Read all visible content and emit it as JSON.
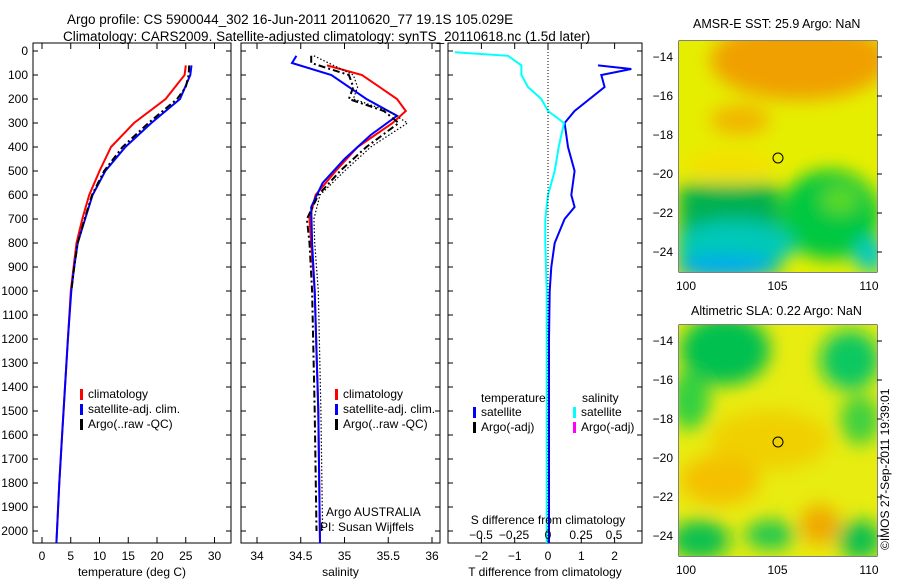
{
  "title_line1": "Argo profile: CS 5900044_302 16-Jun-2011 20110620_77 19.1S 105.029E",
  "title_line2": "Climatology: CARS2009. Satellite-adjusted climatology: synTS_20110618.nc (1.5d later)",
  "side_stamp": "©IMOS 27-Sep-2011 19:39:01",
  "colors": {
    "climatology": "#ff0000",
    "satellite": "#0000ff",
    "argo": "#000000",
    "sal_satellite": "#00ffff",
    "sal_argo": "#ff00ff"
  },
  "chart_data": [
    {
      "type": "line",
      "name": "temperature-profile",
      "xlabel": "temperature (deg C)",
      "ylabel": "",
      "xlim": [
        0,
        31
      ],
      "ylim": [
        2070,
        0
      ],
      "xticks": [
        0,
        5,
        10,
        15,
        20,
        25,
        30
      ],
      "yticks": [
        0,
        100,
        200,
        300,
        400,
        500,
        600,
        700,
        800,
        900,
        1000,
        1100,
        1200,
        1300,
        1400,
        1500,
        1600,
        1700,
        1800,
        1900,
        2000
      ],
      "legend": [
        "climatology",
        "satellite-adj. clim.",
        "Argo(..raw -QC)"
      ],
      "series": [
        {
          "name": "climatology",
          "color": "#ff0000",
          "style": "solid",
          "depth": [
            60,
            100,
            200,
            300,
            400,
            500,
            600,
            700,
            800,
            900,
            1000,
            1200,
            1400,
            1600,
            1800,
            2050
          ],
          "values": [
            25,
            24.8,
            21.5,
            16,
            12,
            10,
            8.2,
            7,
            6,
            5.5,
            5,
            4.5,
            4,
            3.5,
            3,
            2.5
          ]
        },
        {
          "name": "satellite-adj. clim.",
          "color": "#0000ff",
          "style": "solid",
          "depth": [
            60,
            100,
            200,
            300,
            400,
            500,
            600,
            700,
            800,
            900,
            1000,
            1200,
            1400,
            1600,
            1800,
            2050
          ],
          "values": [
            26,
            25.8,
            24,
            19,
            14.5,
            11,
            8.8,
            7.5,
            6.2,
            5.6,
            5.1,
            4.5,
            4,
            3.5,
            3,
            2.5
          ]
        },
        {
          "name": "Argo(..raw -QC)",
          "color": "#000000",
          "style": "dashdot",
          "depth": [
            60,
            100,
            150,
            200,
            300,
            400,
            500,
            600,
            700,
            800,
            900,
            1000
          ],
          "values": [
            25.6,
            25.5,
            25,
            23.5,
            18.5,
            14,
            10.8,
            8.7,
            7.4,
            6.2,
            5.6,
            5.1
          ]
        }
      ]
    },
    {
      "type": "line",
      "name": "salinity-profile",
      "xlabel": "salinity",
      "xlim": [
        33.8,
        36.15
      ],
      "ylim": [
        2070,
        0
      ],
      "xticks": [
        34,
        34.5,
        35,
        35.5,
        36
      ],
      "legend": [
        "climatology",
        "satellite-adj. clim.",
        "Argo(..raw -QC)"
      ],
      "annotation": [
        "Argo AUSTRALIA",
        "PI: Susan Wijffels"
      ],
      "series": [
        {
          "name": "climatology",
          "color": "#ff0000",
          "style": "solid",
          "depth": [
            60,
            100,
            200,
            250,
            300,
            400,
            500,
            600,
            700,
            800,
            1000,
            1500,
            2050
          ],
          "values": [
            34.8,
            35.2,
            35.6,
            35.7,
            35.55,
            35.15,
            34.9,
            34.67,
            34.6,
            34.62,
            34.66,
            34.7,
            34.72
          ]
        },
        {
          "name": "satellite-adj. clim.",
          "color": "#0000ff",
          "style": "solid",
          "depth": [
            20,
            50,
            100,
            200,
            270,
            350,
            450,
            550,
            650,
            800,
            1000,
            1500,
            2050
          ],
          "values": [
            34.45,
            34.4,
            34.85,
            35.25,
            35.6,
            35.3,
            35.0,
            34.75,
            34.62,
            34.63,
            34.66,
            34.7,
            34.72
          ]
        },
        {
          "name": "Argo(..raw -QC)",
          "color": "#000000",
          "style": "dashdot",
          "depth": [
            20,
            50,
            100,
            150,
            200,
            250,
            300,
            400,
            500,
            600,
            700,
            800,
            1000,
            1500,
            2000
          ],
          "values": [
            34.62,
            34.62,
            35.05,
            35.1,
            35.05,
            35.45,
            35.62,
            35.25,
            34.95,
            34.7,
            34.57,
            34.6,
            34.63,
            34.66,
            34.68
          ]
        },
        {
          "name": "Argo dotted",
          "color": "#000000",
          "style": "dotted",
          "depth": [
            20,
            100,
            150,
            200,
            250,
            300,
            400,
            500,
            600,
            700,
            800,
            1000,
            1500,
            2000
          ],
          "values": [
            34.65,
            35.1,
            35.15,
            35.1,
            35.5,
            35.72,
            35.3,
            35.0,
            34.72,
            34.65,
            34.66,
            34.7,
            34.73,
            34.75
          ]
        }
      ]
    },
    {
      "type": "line",
      "name": "difference-profile",
      "xlabel": "T difference from climatology",
      "xlabel2": "S difference from climatology",
      "xlim": [
        -3,
        3
      ],
      "xticks": [
        -2,
        -1,
        0,
        1,
        2
      ],
      "xticks_s": [
        "-0.5",
        "-0.25",
        "0",
        "0.25",
        "0.5"
      ],
      "legend_headers": [
        "temperature",
        "salinity"
      ],
      "legend": [
        "satellite",
        "Argo(-adj)",
        "satellite",
        "Argo(-adj)"
      ],
      "series": [
        {
          "name": "T satellite",
          "color": "#0000ff",
          "depth": [
            60,
            75,
            100,
            150,
            250,
            300,
            400,
            500,
            600,
            650,
            700,
            800,
            900,
            1000,
            1200,
            2050
          ],
          "values": [
            1.5,
            2.5,
            1.6,
            1.7,
            0.8,
            0.5,
            0.6,
            0.8,
            0.7,
            0.8,
            0.5,
            0.2,
            0.1,
            0.05,
            0.03,
            0.03
          ]
        },
        {
          "name": "S satellite",
          "color": "#00ffff",
          "depth": [
            5,
            20,
            60,
            100,
            150,
            200,
            250,
            300,
            400,
            500,
            600,
            700,
            800,
            1000,
            2050
          ],
          "values": [
            -0.7,
            -0.3,
            -0.2,
            -0.2,
            -0.15,
            -0.05,
            0.0,
            0.12,
            0.08,
            0.05,
            0.0,
            -0.02,
            -0.02,
            -0.01,
            -0.01
          ]
        }
      ]
    },
    {
      "type": "heatmap",
      "name": "sst-map",
      "title": "AMSR-E SST: 25.9 Argo: NaN",
      "xticks": [
        100,
        105,
        110
      ],
      "yticks": [
        -14,
        -16,
        -18,
        -20,
        -22,
        -24
      ],
      "marker": [
        105.03,
        -19.1
      ]
    },
    {
      "type": "heatmap",
      "name": "sla-map",
      "title": "Altimetric SLA: 0.22 Argo: NaN",
      "xticks": [
        100,
        105,
        110
      ],
      "yticks": [
        -14,
        -16,
        -18,
        -20,
        -22,
        -24
      ],
      "marker": [
        105.03,
        -19.1
      ]
    }
  ]
}
